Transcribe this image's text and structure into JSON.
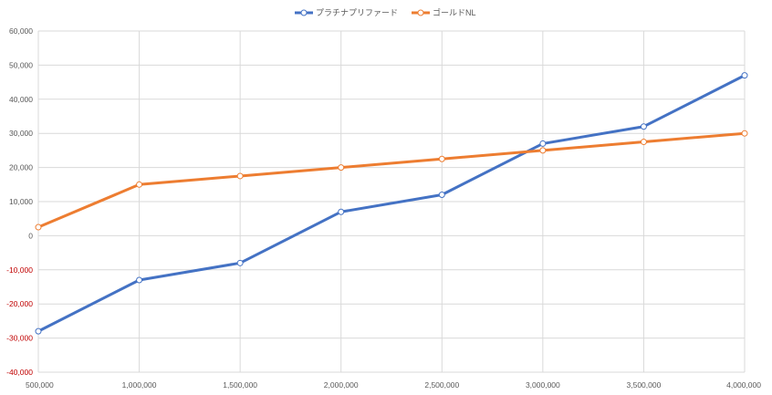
{
  "chart_data": {
    "type": "line",
    "title": "",
    "xlabel": "",
    "ylabel": "",
    "x": [
      500000,
      1000000,
      1500000,
      2000000,
      2500000,
      3000000,
      3500000,
      4000000
    ],
    "x_tick_labels": [
      "500,000",
      "1,000,000",
      "1,500,000",
      "2,000,000",
      "2,500,000",
      "3,000,000",
      "3,500,000",
      "4,000,000"
    ],
    "ylim": [
      -40000,
      60000
    ],
    "y_ticks": [
      -40000,
      -30000,
      -20000,
      -10000,
      0,
      10000,
      20000,
      30000,
      40000,
      50000,
      60000
    ],
    "y_tick_labels": [
      "-40,000",
      "-30,000",
      "-20,000",
      "-10,000",
      "0",
      "10,000",
      "20,000",
      "30,000",
      "40,000",
      "50,000",
      "60,000"
    ],
    "negative_label_color": "#c00000",
    "grid": true,
    "legend_position": "top-center",
    "series": [
      {
        "name": "プラチナプリファード",
        "color": "#4472c4",
        "values": [
          -28000,
          -13000,
          -8000,
          7000,
          12000,
          27000,
          32000,
          47000
        ]
      },
      {
        "name": "ゴールドNL",
        "color": "#ed7d31",
        "values": [
          2500,
          15000,
          17500,
          20000,
          22500,
          25000,
          27500,
          30000
        ]
      }
    ]
  }
}
